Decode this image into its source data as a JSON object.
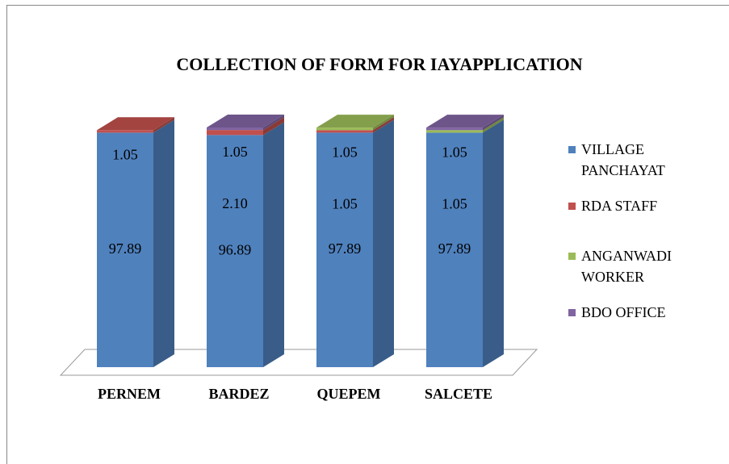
{
  "chart_data": {
    "type": "bar3d_stacked",
    "title": "COLLECTION OF FORM FOR IAYAPPLICATION",
    "categories": [
      "PERNEM",
      "BARDEZ",
      "QUEPEM",
      "SALCETE"
    ],
    "series": [
      {
        "name": "VILLAGE PANCHAYAT",
        "color": "#4f81bd",
        "values": [
          97.89,
          96.89,
          97.89,
          97.89
        ]
      },
      {
        "name": "RDA STAFF",
        "color": "#c0504d",
        "values": [
          1.05,
          2.1,
          1.05,
          null
        ],
        "value_labels": [
          "1.05",
          "2.10",
          "1.05",
          null
        ]
      },
      {
        "name": "ANGANWADI WORKER",
        "color": "#9bbb59",
        "values": [
          null,
          null,
          1.05,
          1.05
        ]
      },
      {
        "name": "BDO OFFICE",
        "color": "#8064a2",
        "values": [
          null,
          1.05,
          null,
          1.05
        ]
      }
    ],
    "legend": "right"
  }
}
